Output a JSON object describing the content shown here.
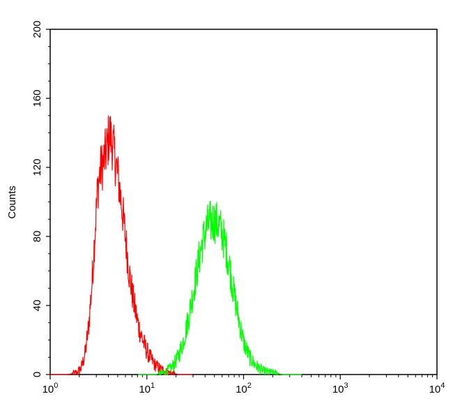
{
  "chart_data": {
    "type": "line",
    "title": "",
    "xlabel": "",
    "ylabel": "Counts",
    "x_scale": "log",
    "xlim": [
      1,
      10000
    ],
    "ylim": [
      0,
      200
    ],
    "grid": false,
    "legend": "none",
    "x_ticks": [
      {
        "base": "10",
        "exp": "0",
        "value": 1
      },
      {
        "base": "10",
        "exp": "1",
        "value": 10
      },
      {
        "base": "10",
        "exp": "2",
        "value": 100
      },
      {
        "base": "10",
        "exp": "3",
        "value": 1000
      },
      {
        "base": "10",
        "exp": "4",
        "value": 10000
      }
    ],
    "y_ticks": [
      "0",
      "40",
      "80",
      "120",
      "160",
      "200"
    ],
    "series": [
      {
        "color": "#ff0000",
        "points": [
          [
            1.0,
            0
          ],
          [
            1.5,
            0
          ],
          [
            1.9,
            1
          ],
          [
            2.1,
            4
          ],
          [
            2.3,
            12
          ],
          [
            2.5,
            28
          ],
          [
            2.7,
            52
          ],
          [
            2.9,
            82
          ],
          [
            3.1,
            108
          ],
          [
            3.3,
            118
          ],
          [
            3.6,
            124
          ],
          [
            3.9,
            132
          ],
          [
            4.1,
            140
          ],
          [
            4.3,
            136
          ],
          [
            4.5,
            131
          ],
          [
            4.8,
            122
          ],
          [
            5.1,
            112
          ],
          [
            5.5,
            98
          ],
          [
            6.0,
            80
          ],
          [
            6.6,
            58
          ],
          [
            7.3,
            42
          ],
          [
            8.2,
            28
          ],
          [
            9.3,
            18
          ],
          [
            10.5,
            11
          ],
          [
            12.0,
            6
          ],
          [
            14.0,
            3
          ],
          [
            17.0,
            1
          ],
          [
            22.0,
            0
          ],
          [
            30.0,
            0
          ]
        ]
      },
      {
        "color": "#00ff00",
        "points": [
          [
            8.0,
            0
          ],
          [
            12.0,
            0
          ],
          [
            15.0,
            1
          ],
          [
            18.0,
            4
          ],
          [
            21.0,
            10
          ],
          [
            24.0,
            20
          ],
          [
            27.0,
            33
          ],
          [
            30.0,
            47
          ],
          [
            33.0,
            60
          ],
          [
            36.0,
            72
          ],
          [
            39.0,
            80
          ],
          [
            42.0,
            86
          ],
          [
            45.0,
            88
          ],
          [
            50.0,
            89
          ],
          [
            55.0,
            87
          ],
          [
            60.0,
            82
          ],
          [
            66.0,
            73
          ],
          [
            72.0,
            62
          ],
          [
            80.0,
            46
          ],
          [
            90.0,
            31
          ],
          [
            100.0,
            19
          ],
          [
            115.0,
            10
          ],
          [
            135.0,
            5
          ],
          [
            160.0,
            2
          ],
          [
            200.0,
            1
          ],
          [
            260.0,
            0
          ],
          [
            400.0,
            0
          ]
        ]
      }
    ]
  }
}
